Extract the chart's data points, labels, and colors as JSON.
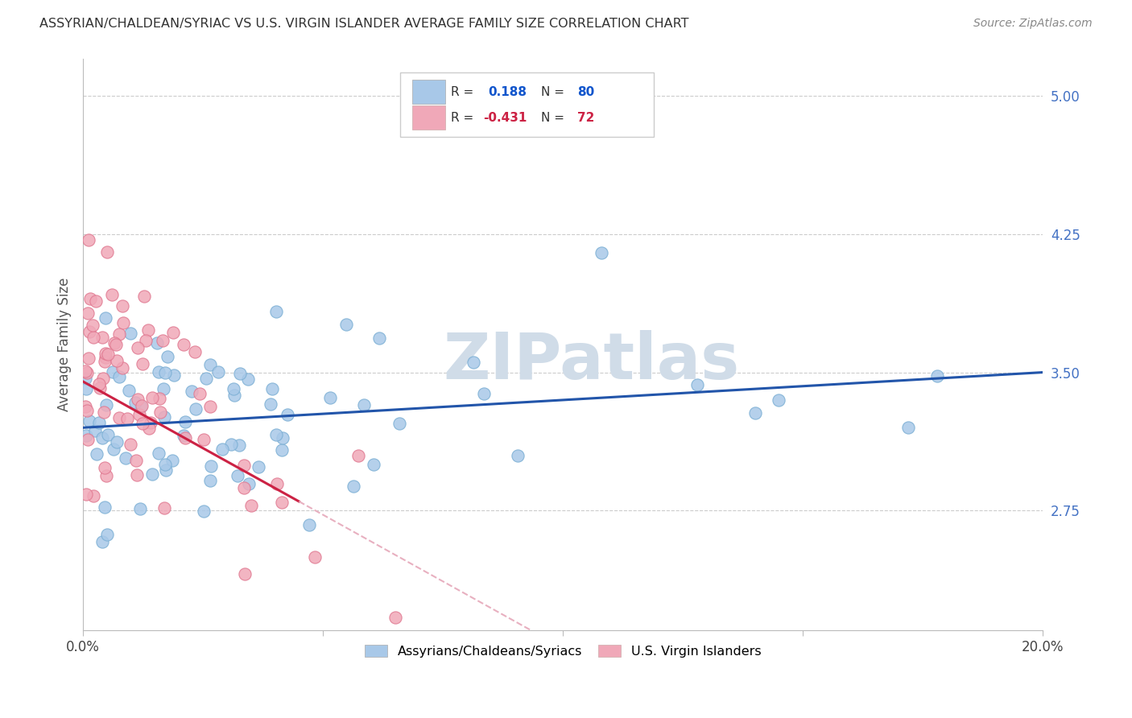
{
  "title": "ASSYRIAN/CHALDEAN/SYRIAC VS U.S. VIRGIN ISLANDER AVERAGE FAMILY SIZE CORRELATION CHART",
  "source": "Source: ZipAtlas.com",
  "ylabel": "Average Family Size",
  "right_yticks": [
    2.75,
    3.5,
    4.25,
    5.0
  ],
  "right_ytick_color": "#4472C4",
  "xlim": [
    0.0,
    20.0
  ],
  "ylim": [
    2.1,
    5.2
  ],
  "blue_R": 0.188,
  "blue_N": 80,
  "pink_R": -0.431,
  "pink_N": 72,
  "blue_color": "#A8C8E8",
  "pink_color": "#F0A8B8",
  "blue_edge_color": "#7BAFD4",
  "pink_edge_color": "#E07890",
  "blue_line_color": "#2255AA",
  "pink_line_color": "#CC2244",
  "pink_dash_color": "#E8B0C0",
  "watermark": "ZIPatlas",
  "watermark_color": "#D0DCE8",
  "grid_color": "#CCCCCC",
  "legend_border_color": "#CCCCCC",
  "title_color": "#333333",
  "source_color": "#888888"
}
